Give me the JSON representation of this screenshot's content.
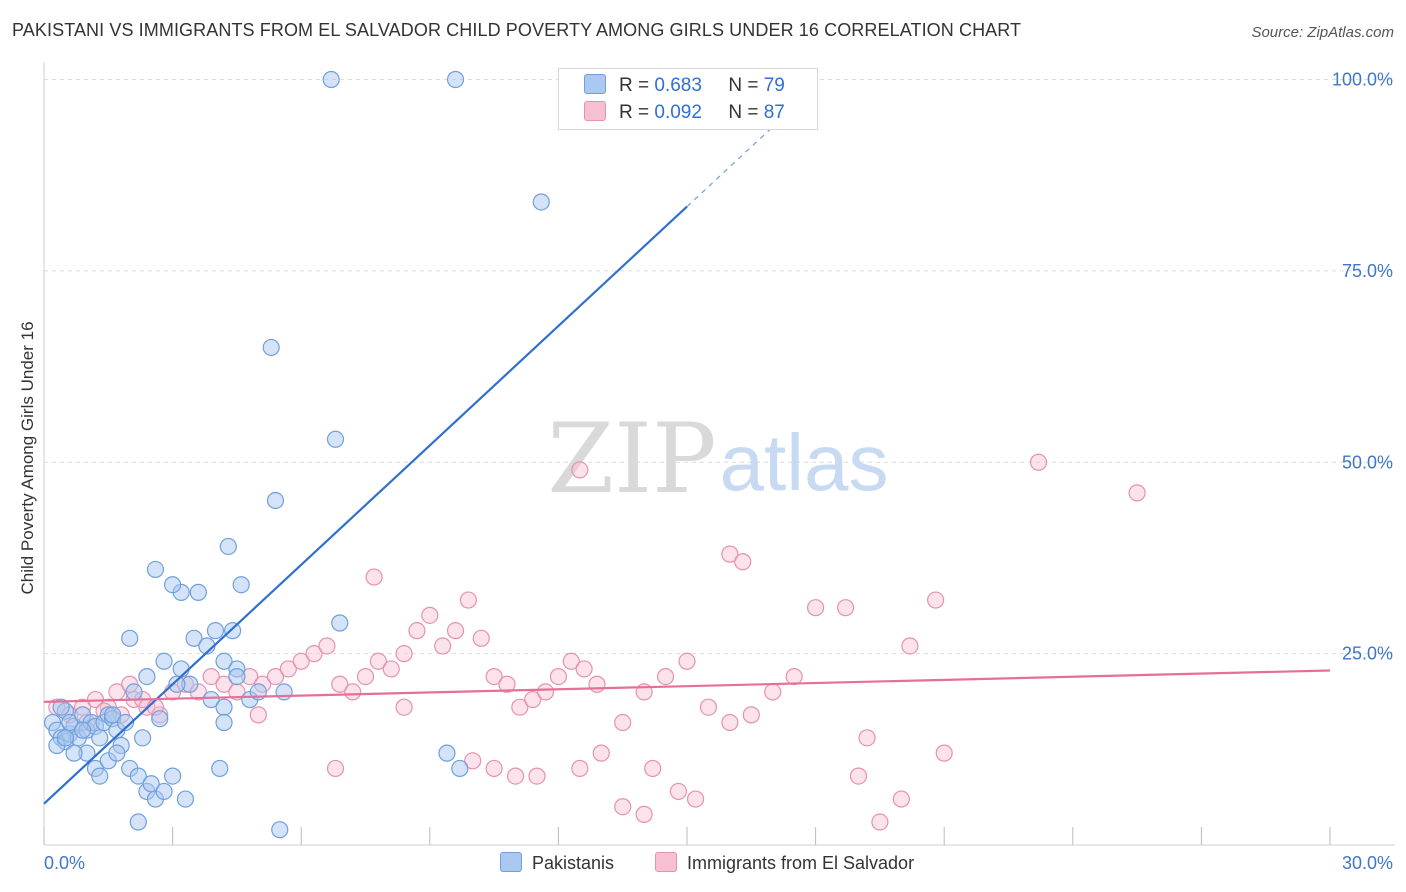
{
  "header": {
    "title": "PAKISTANI VS IMMIGRANTS FROM EL SALVADOR CHILD POVERTY AMONG GIRLS UNDER 16 CORRELATION CHART",
    "source": "Source: ZipAtlas.com"
  },
  "watermark": {
    "zip": "ZIP",
    "atlas": "atlas"
  },
  "legend": {
    "items": [
      {
        "r_label": "R = ",
        "r_value": "0.683",
        "n_label": "N = ",
        "n_value": "79"
      },
      {
        "r_label": "R = ",
        "r_value": "0.092",
        "n_label": "N = ",
        "n_value": "87"
      }
    ]
  },
  "bottom_legend": {
    "series1": "Pakistanis",
    "series2": "Immigrants from El Salvador"
  },
  "colors": {
    "blue_fill": "#aac8f0",
    "blue_stroke": "#6fa0dc",
    "blue_line": "#2f70cf",
    "pink_fill": "#f6bfd2",
    "pink_stroke": "#e592b1",
    "pink_line": "#e66f98",
    "tick_text": "#3f76c9",
    "grid": "#dcdcdc"
  },
  "chart_data": {
    "type": "scatter",
    "title": "PAKISTANI VS IMMIGRANTS FROM EL SALVADOR CHILD POVERTY AMONG GIRLS UNDER 16 CORRELATION CHART",
    "xlabel": "",
    "ylabel": "Child Poverty Among Girls Under 16",
    "xlim": [
      0,
      30
    ],
    "ylim": [
      0,
      100
    ],
    "x_ticks": [
      0,
      30
    ],
    "x_tick_labels": [
      "0.0%",
      "30.0%"
    ],
    "y_ticks": [
      25,
      50,
      75,
      100
    ],
    "y_tick_labels": [
      "25.0%",
      "50.0%",
      "75.0%",
      "100.0%"
    ],
    "series": [
      {
        "name": "Pakistanis",
        "R": 0.683,
        "N": 79,
        "trend": {
          "x0": 0,
          "y0": 5.4,
          "x1": 15.0,
          "y1": 83.4,
          "dash_to_x": 17.0,
          "dash_to_y": 93.8
        },
        "points": [
          [
            0.2,
            16
          ],
          [
            0.3,
            15
          ],
          [
            0.4,
            14
          ],
          [
            0.5,
            13.5
          ],
          [
            0.6,
            14.5
          ],
          [
            0.7,
            15.5
          ],
          [
            0.8,
            14
          ],
          [
            0.3,
            13
          ],
          [
            0.5,
            17.5
          ],
          [
            0.4,
            18
          ],
          [
            0.6,
            16
          ],
          [
            0.9,
            17
          ],
          [
            1.0,
            15
          ],
          [
            1.1,
            16
          ],
          [
            1.2,
            15.5
          ],
          [
            1.3,
            14
          ],
          [
            1.4,
            16
          ],
          [
            1.5,
            17
          ],
          [
            1.6,
            16.5
          ],
          [
            1.7,
            15
          ],
          [
            1.8,
            13
          ],
          [
            1.0,
            12
          ],
          [
            1.2,
            10
          ],
          [
            1.5,
            11
          ],
          [
            1.7,
            12
          ],
          [
            2.0,
            10
          ],
          [
            2.2,
            9
          ],
          [
            2.4,
            7
          ],
          [
            2.5,
            8
          ],
          [
            2.6,
            6
          ],
          [
            2.8,
            7
          ],
          [
            3.0,
            9
          ],
          [
            3.3,
            6
          ],
          [
            2.2,
            3
          ],
          [
            2.1,
            20
          ],
          [
            2.4,
            22
          ],
          [
            2.8,
            24
          ],
          [
            3.2,
            23
          ],
          [
            3.5,
            27
          ],
          [
            3.8,
            26
          ],
          [
            4.2,
            24
          ],
          [
            4.5,
            23
          ],
          [
            3.4,
            21
          ],
          [
            3.9,
            19
          ],
          [
            4.2,
            18
          ],
          [
            4.8,
            19
          ],
          [
            5.0,
            20
          ],
          [
            5.6,
            20
          ],
          [
            2.0,
            27
          ],
          [
            2.6,
            36
          ],
          [
            3.2,
            33
          ],
          [
            3.6,
            33
          ],
          [
            4.3,
            39
          ],
          [
            4.6,
            34
          ],
          [
            4.0,
            28
          ],
          [
            4.4,
            28
          ],
          [
            4.5,
            22
          ],
          [
            4.1,
            10
          ],
          [
            4.2,
            16
          ],
          [
            5.3,
            65
          ],
          [
            5.4,
            45
          ],
          [
            6.8,
            53
          ],
          [
            6.9,
            29
          ],
          [
            6.7,
            100
          ],
          [
            9.6,
            100
          ],
          [
            11.6,
            84
          ],
          [
            9.4,
            12
          ],
          [
            9.7,
            10
          ],
          [
            5.5,
            2
          ],
          [
            3.0,
            34
          ],
          [
            1.6,
            17
          ],
          [
            0.5,
            14
          ],
          [
            0.7,
            12
          ],
          [
            1.3,
            9
          ],
          [
            2.3,
            14
          ],
          [
            3.1,
            21
          ],
          [
            0.9,
            15
          ],
          [
            1.9,
            16
          ],
          [
            2.7,
            16.5
          ]
        ]
      },
      {
        "name": "Immigrants from El Salvador",
        "R": 0.092,
        "N": 87,
        "trend": {
          "x0": 0,
          "y0": 18.7,
          "x1": 30.0,
          "y1": 22.8
        },
        "points": [
          [
            0.3,
            18
          ],
          [
            0.6,
            17
          ],
          [
            0.9,
            18
          ],
          [
            1.2,
            19
          ],
          [
            1.5,
            18
          ],
          [
            1.8,
            17
          ],
          [
            2.1,
            19
          ],
          [
            2.4,
            18
          ],
          [
            2.7,
            17
          ],
          [
            1.0,
            16
          ],
          [
            1.4,
            17.5
          ],
          [
            1.7,
            20
          ],
          [
            2.0,
            21
          ],
          [
            2.3,
            19
          ],
          [
            2.6,
            18
          ],
          [
            3.0,
            20
          ],
          [
            3.3,
            21
          ],
          [
            3.6,
            20
          ],
          [
            3.9,
            22
          ],
          [
            4.2,
            21
          ],
          [
            4.5,
            20
          ],
          [
            4.8,
            22
          ],
          [
            5.1,
            21
          ],
          [
            5.4,
            22
          ],
          [
            5.7,
            23
          ],
          [
            6.0,
            24
          ],
          [
            6.3,
            25
          ],
          [
            6.6,
            26
          ],
          [
            6.9,
            21
          ],
          [
            7.2,
            20
          ],
          [
            7.5,
            22
          ],
          [
            7.8,
            24
          ],
          [
            8.1,
            23
          ],
          [
            8.4,
            25
          ],
          [
            8.7,
            28
          ],
          [
            9.0,
            30
          ],
          [
            9.3,
            26
          ],
          [
            9.6,
            28
          ],
          [
            9.9,
            32
          ],
          [
            10.2,
            27
          ],
          [
            10.5,
            22
          ],
          [
            10.8,
            21
          ],
          [
            11.1,
            18
          ],
          [
            11.4,
            19
          ],
          [
            11.7,
            20
          ],
          [
            12.0,
            22
          ],
          [
            12.3,
            24
          ],
          [
            12.6,
            23
          ],
          [
            12.9,
            21
          ],
          [
            13.5,
            16
          ],
          [
            14.0,
            20
          ],
          [
            14.5,
            22
          ],
          [
            15.0,
            24
          ],
          [
            15.5,
            18
          ],
          [
            16.0,
            16
          ],
          [
            16.5,
            17
          ],
          [
            17.0,
            20
          ],
          [
            17.5,
            22
          ],
          [
            18.0,
            31
          ],
          [
            18.7,
            31
          ],
          [
            19.2,
            14
          ],
          [
            20.2,
            26
          ],
          [
            16.0,
            38
          ],
          [
            16.3,
            37
          ],
          [
            7.7,
            35
          ],
          [
            12.5,
            49
          ],
          [
            23.2,
            50
          ],
          [
            25.5,
            46
          ],
          [
            20.8,
            32
          ],
          [
            13.0,
            12
          ],
          [
            14.2,
            10
          ],
          [
            14.8,
            7
          ],
          [
            15.2,
            6
          ],
          [
            10.0,
            11
          ],
          [
            10.5,
            10
          ],
          [
            11.0,
            9
          ],
          [
            11.5,
            9
          ],
          [
            12.5,
            10
          ],
          [
            13.5,
            5
          ],
          [
            14.0,
            4
          ],
          [
            19.0,
            9
          ],
          [
            20.0,
            6
          ],
          [
            19.5,
            3
          ],
          [
            21.0,
            12
          ],
          [
            6.8,
            10
          ],
          [
            5.0,
            17
          ],
          [
            8.4,
            18
          ]
        ]
      }
    ]
  }
}
